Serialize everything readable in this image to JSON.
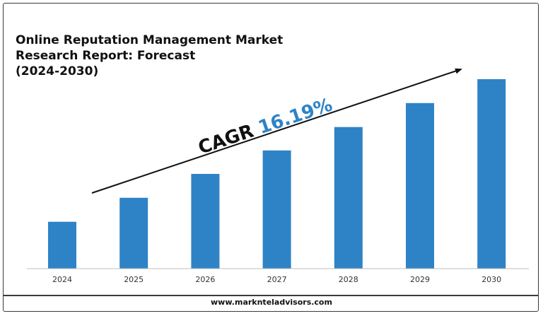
{
  "title_lines": [
    "Online Reputation Management Market",
    "Research Report: Forecast",
    "(2024-2030)"
  ],
  "annotation": {
    "prefix": "CAGR ",
    "value": "16.19%"
  },
  "footer": "www.marknteladvisors.com",
  "colors": {
    "bar": "#2e83c6",
    "cagr_value": "#2e83c6",
    "text": "#111111"
  },
  "chart_data": {
    "type": "bar",
    "categories": [
      "2024",
      "2025",
      "2026",
      "2027",
      "2028",
      "2029",
      "2030"
    ],
    "values": [
      1.0,
      1.51,
      2.02,
      2.52,
      3.02,
      3.53,
      4.04
    ],
    "ylim": [
      0,
      4.04
    ],
    "grid": false,
    "legend": "none",
    "annotations": [
      "CAGR 16.19%"
    ]
  }
}
